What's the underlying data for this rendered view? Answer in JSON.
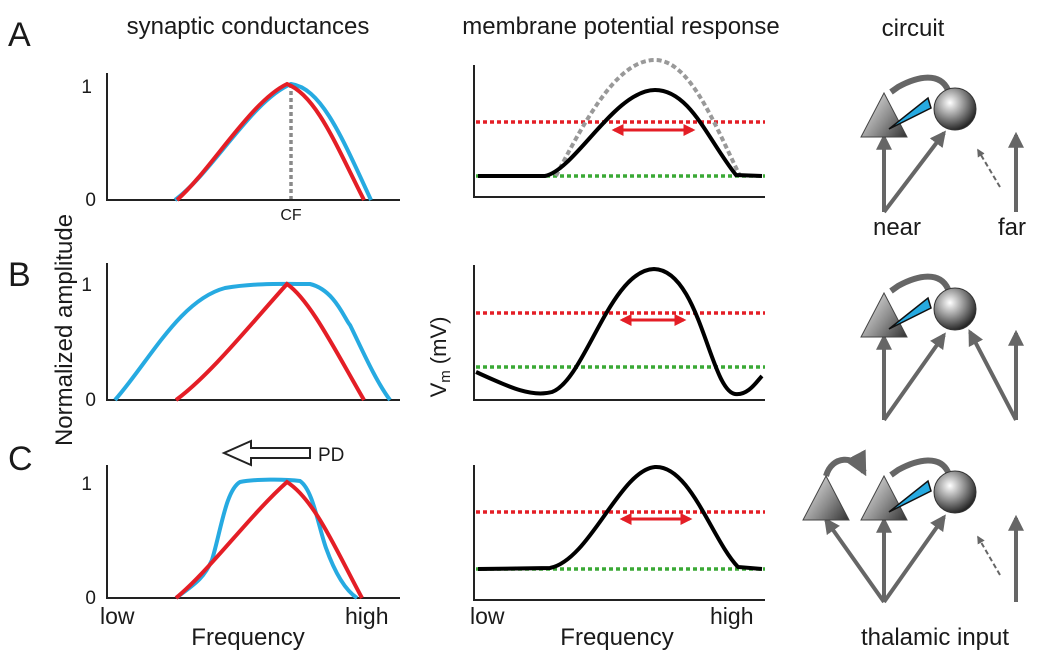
{
  "headers": {
    "col1": "synaptic conductances",
    "col2": "membrane potential response",
    "col3": "circuit"
  },
  "rows": [
    {
      "letter": "A",
      "circuit": {
        "extra_inhibitory": false,
        "far_input": "weak"
      }
    },
    {
      "letter": "B",
      "circuit": {
        "extra_inhibitory": false,
        "far_input": "strong"
      }
    },
    {
      "letter": "C",
      "circuit": {
        "extra_inhibitory": true,
        "far_input": "weak"
      }
    }
  ],
  "labels": {
    "y_axis_left": "Normalized amplitude",
    "y_axis_mid_main": "V",
    "y_axis_mid_sub": "m",
    "y_axis_mid_unit": "(mV)",
    "tick_one": "1",
    "tick_zero": "0",
    "cf": "CF",
    "x_low": "low",
    "x_high": "high",
    "x_axis": "Frequency",
    "pd": "PD",
    "near": "near",
    "far": "far",
    "thalamic": "thalamic input"
  },
  "colors": {
    "excitation": "#e41e26",
    "inhibition": "#26aae1",
    "response": "#000000",
    "threshold": "#e41e26",
    "baseline": "#3aa935",
    "unadjusted_response": "#999999",
    "circuit": "#666666",
    "synapse": "#26aae1"
  },
  "icons": [
    "pyramidal-neuron-icon",
    "interneuron-icon",
    "inhibitory-synapse-icon",
    "pd-arrow-icon"
  ]
}
